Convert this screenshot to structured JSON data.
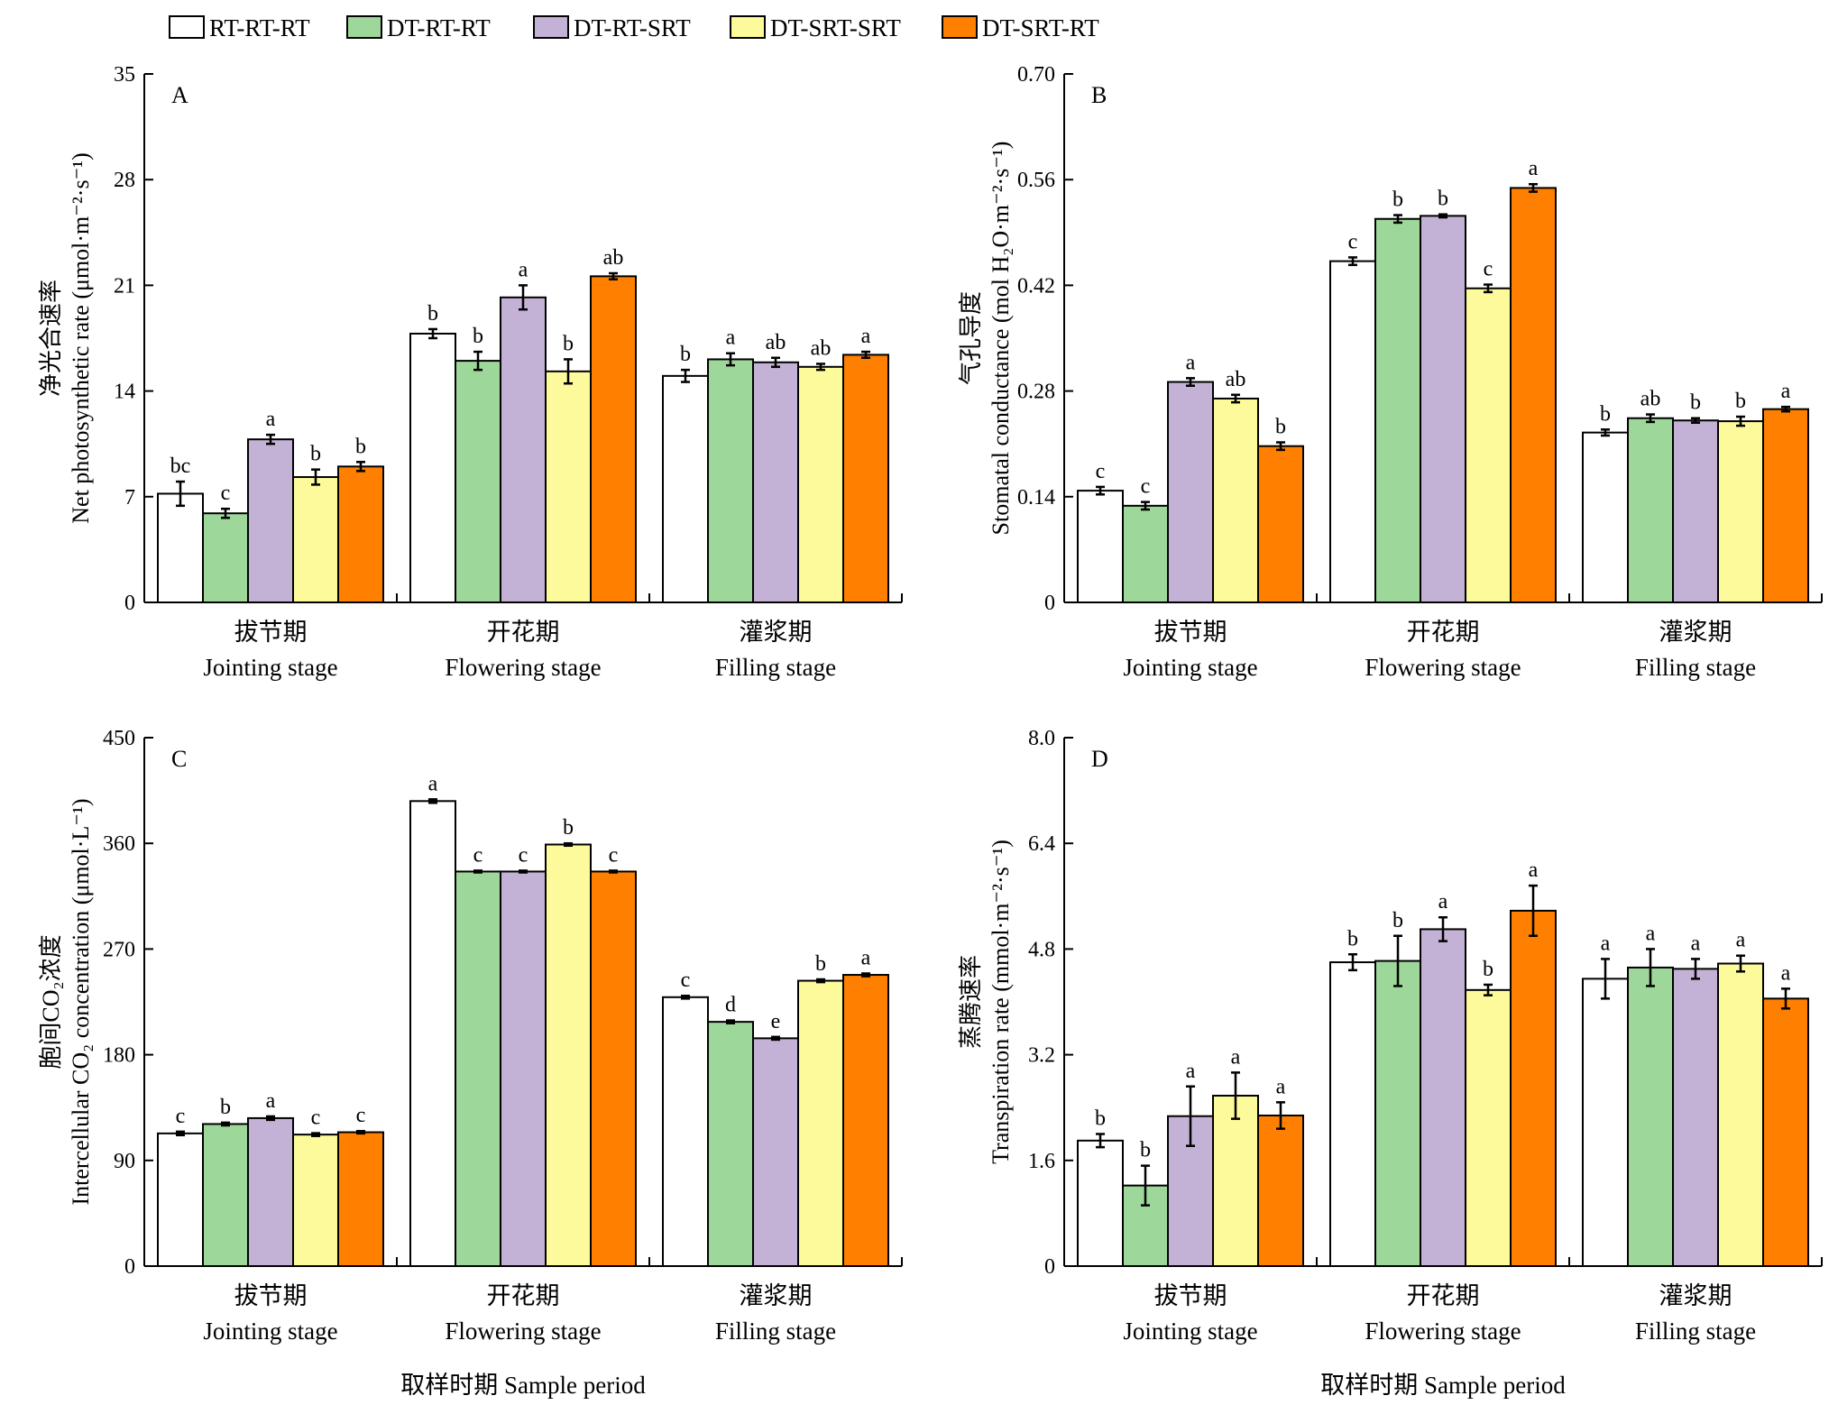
{
  "legend": [
    {
      "name": "RT-RT-RT",
      "color": "#ffffff"
    },
    {
      "name": "DT-RT-RT",
      "color": "#9ed79a"
    },
    {
      "name": "DT-RT-SRT",
      "color": "#c3b2d6"
    },
    {
      "name": "DT-SRT-SRT",
      "color": "#fdfa9b"
    },
    {
      "name": "DT-SRT-RT",
      "color": "#ff7f00"
    }
  ],
  "categories_cn": [
    "拔节期",
    "开花期",
    "灌浆期"
  ],
  "categories_en": [
    "Jointing stage",
    "Flowering stage",
    "Filling stage"
  ],
  "x_title": "取样时期 Sample period",
  "chart_data": [
    {
      "type": "bar",
      "panel": "A",
      "ylabel_cn": "净光合速率",
      "ylabel_en": "Net photosynthetic rate (μmol·m⁻²·s⁻¹)",
      "ylim": [
        0,
        35
      ],
      "yticks": [
        "0",
        "7",
        "14",
        "21",
        "28",
        "35"
      ],
      "categories": [
        "拔节期 Jointing stage",
        "开花期 Flowering stage",
        "灌浆期 Filling stage"
      ],
      "series": [
        {
          "name": "RT-RT-RT",
          "values": [
            7.2,
            17.8,
            15.0
          ],
          "errors": [
            0.8,
            0.3,
            0.4
          ],
          "letters": [
            "bc",
            "b",
            "b"
          ]
        },
        {
          "name": "DT-RT-RT",
          "values": [
            5.9,
            16.0,
            16.1
          ],
          "errors": [
            0.3,
            0.6,
            0.4
          ],
          "letters": [
            "c",
            "b",
            "a"
          ]
        },
        {
          "name": "DT-RT-SRT",
          "values": [
            10.8,
            20.2,
            15.9
          ],
          "errors": [
            0.3,
            0.8,
            0.3
          ],
          "letters": [
            "a",
            "a",
            "ab"
          ]
        },
        {
          "name": "DT-SRT-SRT",
          "values": [
            8.3,
            15.3,
            15.6
          ],
          "errors": [
            0.5,
            0.8,
            0.2
          ],
          "letters": [
            "b",
            "b",
            "ab"
          ]
        },
        {
          "name": "DT-SRT-RT",
          "values": [
            9.0,
            21.6,
            16.4
          ],
          "errors": [
            0.3,
            0.2,
            0.2
          ],
          "letters": [
            "b",
            "ab",
            "a"
          ]
        }
      ]
    },
    {
      "type": "bar",
      "panel": "B",
      "ylabel_cn": "气孔导度",
      "ylabel_en": "Stomatal conductance (mol H₂O·m⁻²·s⁻¹)",
      "ylim": [
        0,
        0.7
      ],
      "yticks": [
        "0",
        "0.14",
        "0.28",
        "0.42",
        "0.56",
        "0.70"
      ],
      "categories": [
        "拔节期 Jointing stage",
        "开花期 Flowering stage",
        "灌浆期 Filling stage"
      ],
      "series": [
        {
          "name": "RT-RT-RT",
          "values": [
            0.148,
            0.452,
            0.225
          ],
          "errors": [
            0.005,
            0.005,
            0.004
          ],
          "letters": [
            "c",
            "c",
            "b"
          ]
        },
        {
          "name": "DT-RT-RT",
          "values": [
            0.128,
            0.508,
            0.244
          ],
          "errors": [
            0.005,
            0.005,
            0.005
          ],
          "letters": [
            "c",
            "b",
            "ab"
          ]
        },
        {
          "name": "DT-RT-SRT",
          "values": [
            0.292,
            0.512,
            0.241
          ],
          "errors": [
            0.005,
            0.002,
            0.003
          ],
          "letters": [
            "a",
            "b",
            "b"
          ]
        },
        {
          "name": "DT-SRT-SRT",
          "values": [
            0.27,
            0.416,
            0.24
          ],
          "errors": [
            0.005,
            0.005,
            0.006
          ],
          "letters": [
            "ab",
            "c",
            "b"
          ]
        },
        {
          "name": "DT-SRT-RT",
          "values": [
            0.207,
            0.549,
            0.256
          ],
          "errors": [
            0.005,
            0.005,
            0.003
          ],
          "letters": [
            "b",
            "a",
            "a"
          ]
        }
      ]
    },
    {
      "type": "bar",
      "panel": "C",
      "ylabel_cn": "胞间CO₂浓度",
      "ylabel_en": "Intercellular CO₂ concentration (μmol·L⁻¹)",
      "ylim": [
        0,
        450
      ],
      "yticks": [
        "0",
        "90",
        "180",
        "270",
        "360",
        "450"
      ],
      "categories": [
        "拔节期 Jointing stage",
        "开花期 Flowering stage",
        "灌浆期 Filling stage"
      ],
      "series": [
        {
          "name": "RT-RT-RT",
          "values": [
            113,
            396,
            229
          ],
          "errors": [
            1.5,
            1.5,
            1.2
          ],
          "letters": [
            "c",
            "a",
            "c"
          ]
        },
        {
          "name": "DT-RT-RT",
          "values": [
            121,
            336,
            208
          ],
          "errors": [
            1.2,
            0.8,
            1.2
          ],
          "letters": [
            "b",
            "c",
            "d"
          ]
        },
        {
          "name": "DT-RT-SRT",
          "values": [
            126,
            336,
            194
          ],
          "errors": [
            1.5,
            0.8,
            1.2
          ],
          "letters": [
            "a",
            "c",
            "e"
          ]
        },
        {
          "name": "DT-SRT-SRT",
          "values": [
            112,
            359,
            243
          ],
          "errors": [
            1.2,
            1.0,
            1.2
          ],
          "letters": [
            "c",
            "b",
            "b"
          ]
        },
        {
          "name": "DT-SRT-RT",
          "values": [
            114,
            336,
            248
          ],
          "errors": [
            1.0,
            0.8,
            1.2
          ],
          "letters": [
            "c",
            "c",
            "a"
          ]
        }
      ]
    },
    {
      "type": "bar",
      "panel": "D",
      "ylabel_cn": "蒸腾速率",
      "ylabel_en": "Transpiration rate (mmol·m⁻²·s⁻¹)",
      "ylim": [
        0,
        8
      ],
      "yticks": [
        "0",
        "1.6",
        "3.2",
        "4.8",
        "6.4",
        "8.0"
      ],
      "categories": [
        "拔节期 Jointing stage",
        "开花期 Flowering stage",
        "灌浆期 Filling stage"
      ],
      "series": [
        {
          "name": "RT-RT-RT",
          "values": [
            1.9,
            4.6,
            4.35
          ],
          "errors": [
            0.1,
            0.12,
            0.3
          ],
          "letters": [
            "b",
            "b",
            "a"
          ]
        },
        {
          "name": "DT-RT-RT",
          "values": [
            1.22,
            4.62,
            4.52
          ],
          "errors": [
            0.3,
            0.38,
            0.28
          ],
          "letters": [
            "b",
            "b",
            "a"
          ]
        },
        {
          "name": "DT-RT-SRT",
          "values": [
            2.27,
            5.1,
            4.5
          ],
          "errors": [
            0.45,
            0.18,
            0.15
          ],
          "letters": [
            "a",
            "a",
            "a"
          ]
        },
        {
          "name": "DT-SRT-SRT",
          "values": [
            2.58,
            4.18,
            4.58
          ],
          "errors": [
            0.35,
            0.08,
            0.12
          ],
          "letters": [
            "a",
            "b",
            "a"
          ]
        },
        {
          "name": "DT-SRT-RT",
          "values": [
            2.28,
            5.38,
            4.05
          ],
          "errors": [
            0.2,
            0.38,
            0.15
          ],
          "letters": [
            "a",
            "a",
            "a"
          ]
        }
      ]
    }
  ]
}
